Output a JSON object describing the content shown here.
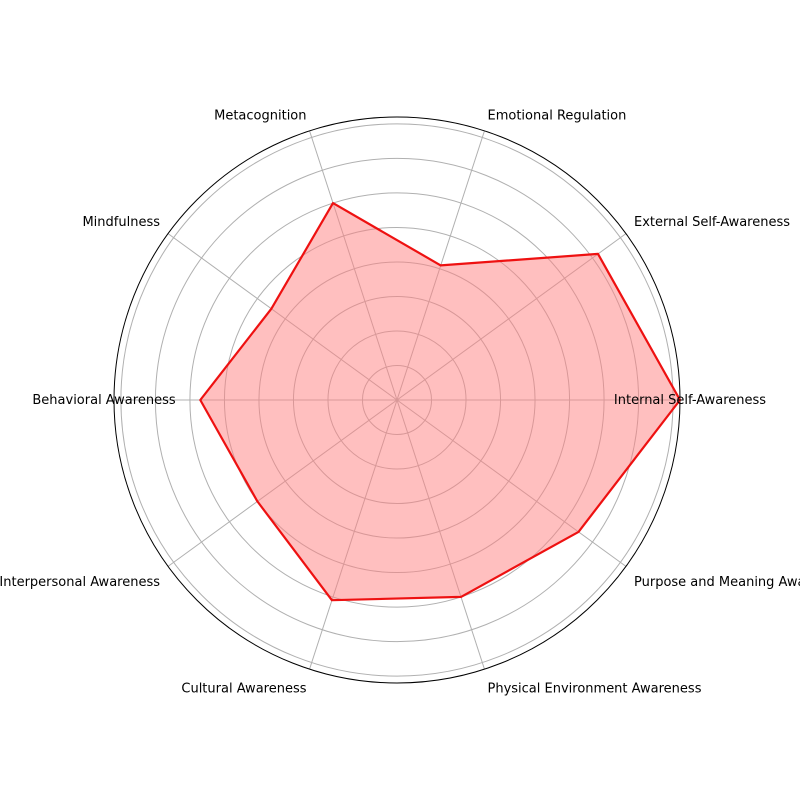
{
  "chart_data": {
    "type": "radar",
    "title": "",
    "categories": [
      "Internal Self-Awareness",
      "External Self-Awareness",
      "Emotional Regulation",
      "Metacognition",
      "Mindfulness",
      "Behavioral Awareness",
      "Interpersonal Awareness",
      "Cultural Awareness",
      "Physical Environment Awareness",
      "Purpose and Meaning Awareness"
    ],
    "series": [
      {
        "values": [
          8.2,
          7.2,
          4.1,
          6.0,
          4.5,
          5.7,
          5.0,
          6.1,
          6.0,
          6.5
        ],
        "line_color": "#ee1111",
        "fill_color": "#ff8080"
      }
    ],
    "rlim": [
      0,
      8.2
    ],
    "rings": [
      1,
      2,
      3,
      4,
      5,
      6,
      7,
      8
    ],
    "grid": true,
    "grid_color": "#b0b0b0"
  }
}
